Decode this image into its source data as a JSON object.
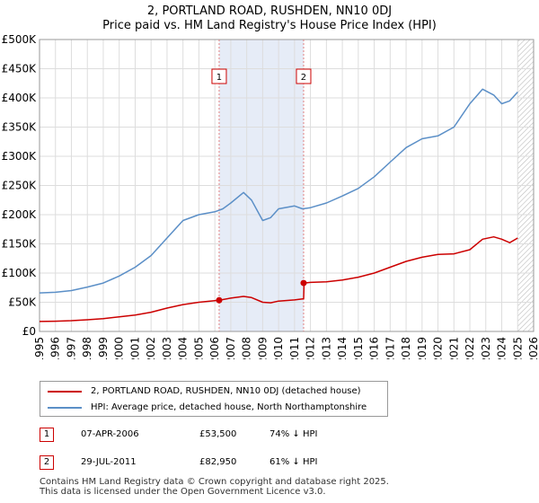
{
  "chart_data": {
    "type": "line",
    "title": "2, PORTLAND ROAD, RUSHDEN, NN10 0DJ",
    "subtitle": "Price paid vs. HM Land Registry's House Price Index (HPI)",
    "xlim": [
      1995,
      2026
    ],
    "ylim": [
      0,
      500000
    ],
    "x_ticks": [
      1995,
      1996,
      1997,
      1998,
      1999,
      2000,
      2001,
      2002,
      2003,
      2004,
      2005,
      2006,
      2007,
      2008,
      2009,
      2010,
      2011,
      2012,
      2013,
      2014,
      2015,
      2016,
      2017,
      2018,
      2019,
      2020,
      2021,
      2022,
      2023,
      2024,
      2025,
      2026
    ],
    "y_ticks": [
      {
        "value": 0,
        "label": "£0"
      },
      {
        "value": 50000,
        "label": "£50K"
      },
      {
        "value": 100000,
        "label": "£100K"
      },
      {
        "value": 150000,
        "label": "£150K"
      },
      {
        "value": 200000,
        "label": "£200K"
      },
      {
        "value": 250000,
        "label": "£250K"
      },
      {
        "value": 300000,
        "label": "£300K"
      },
      {
        "value": 350000,
        "label": "£350K"
      },
      {
        "value": 400000,
        "label": "£400K"
      },
      {
        "value": 450000,
        "label": "£450K"
      },
      {
        "value": 500000,
        "label": "£500K"
      }
    ],
    "shaded_regions": [
      {
        "x0": 2006.27,
        "x1": 2011.57
      }
    ],
    "future_hatch_from": 2025.0,
    "series": [
      {
        "name": "2, PORTLAND ROAD, RUSHDEN, NN10 0DJ (detached house)",
        "color": "#cc0000",
        "x": [
          1995.0,
          1996.0,
          1997.0,
          1998.0,
          1999.0,
          2000.0,
          2001.0,
          2002.0,
          2003.0,
          2004.0,
          2005.0,
          2006.27,
          2007.0,
          2007.8,
          2008.3,
          2009.0,
          2009.5,
          2010.0,
          2011.0,
          2011.57,
          2011.6,
          2012.0,
          2013.0,
          2014.0,
          2015.0,
          2016.0,
          2017.0,
          2018.0,
          2019.0,
          2020.0,
          2021.0,
          2022.0,
          2022.8,
          2023.5,
          2024.0,
          2024.5,
          2025.0
        ],
        "y": [
          17000,
          17500,
          18500,
          20000,
          22000,
          25000,
          28000,
          33000,
          40000,
          46000,
          50000,
          53500,
          57000,
          60000,
          58000,
          50000,
          49000,
          52000,
          54000,
          56000,
          82950,
          84000,
          85000,
          88000,
          93000,
          100000,
          110000,
          120000,
          127000,
          132000,
          133000,
          140000,
          158000,
          162000,
          158000,
          152000,
          160000
        ]
      },
      {
        "name": "HPI: Average price, detached house, North Northamptonshire",
        "color": "#5b8fc7",
        "x": [
          1995.0,
          1996.0,
          1997.0,
          1998.0,
          1999.0,
          2000.0,
          2001.0,
          2002.0,
          2003.0,
          2004.0,
          2005.0,
          2006.0,
          2006.5,
          2007.0,
          2007.8,
          2008.3,
          2009.0,
          2009.5,
          2010.0,
          2011.0,
          2011.5,
          2012.0,
          2013.0,
          2014.0,
          2015.0,
          2016.0,
          2017.0,
          2018.0,
          2019.0,
          2020.0,
          2021.0,
          2022.0,
          2022.8,
          2023.5,
          2024.0,
          2024.5,
          2025.0
        ],
        "y": [
          66000,
          67000,
          70000,
          76000,
          83000,
          95000,
          110000,
          130000,
          160000,
          190000,
          200000,
          205000,
          210000,
          220000,
          238000,
          225000,
          190000,
          195000,
          210000,
          215000,
          210000,
          212000,
          220000,
          232000,
          245000,
          265000,
          290000,
          315000,
          330000,
          335000,
          350000,
          390000,
          415000,
          405000,
          390000,
          395000,
          410000
        ]
      }
    ],
    "annotations": [
      {
        "label": "1",
        "x": 2006.27,
        "y": 53500
      },
      {
        "label": "2",
        "x": 2011.57,
        "y": 82950
      }
    ]
  },
  "legend": [
    {
      "label": "2, PORTLAND ROAD, RUSHDEN, NN10 0DJ (detached house)",
      "color": "#cc0000"
    },
    {
      "label": "HPI: Average price, detached house, North Northamptonshire",
      "color": "#5b8fc7"
    }
  ],
  "transactions": [
    {
      "num": "1",
      "date": "07-APR-2006",
      "price": "£53,500",
      "hpi": "74% ↓ HPI"
    },
    {
      "num": "2",
      "date": "29-JUL-2011",
      "price": "£82,950",
      "hpi": "61% ↓ HPI"
    }
  ],
  "footer": {
    "line1": "Contains HM Land Registry data © Crown copyright and database right 2025.",
    "line2": "This data is licensed under the Open Government Licence v3.0."
  }
}
